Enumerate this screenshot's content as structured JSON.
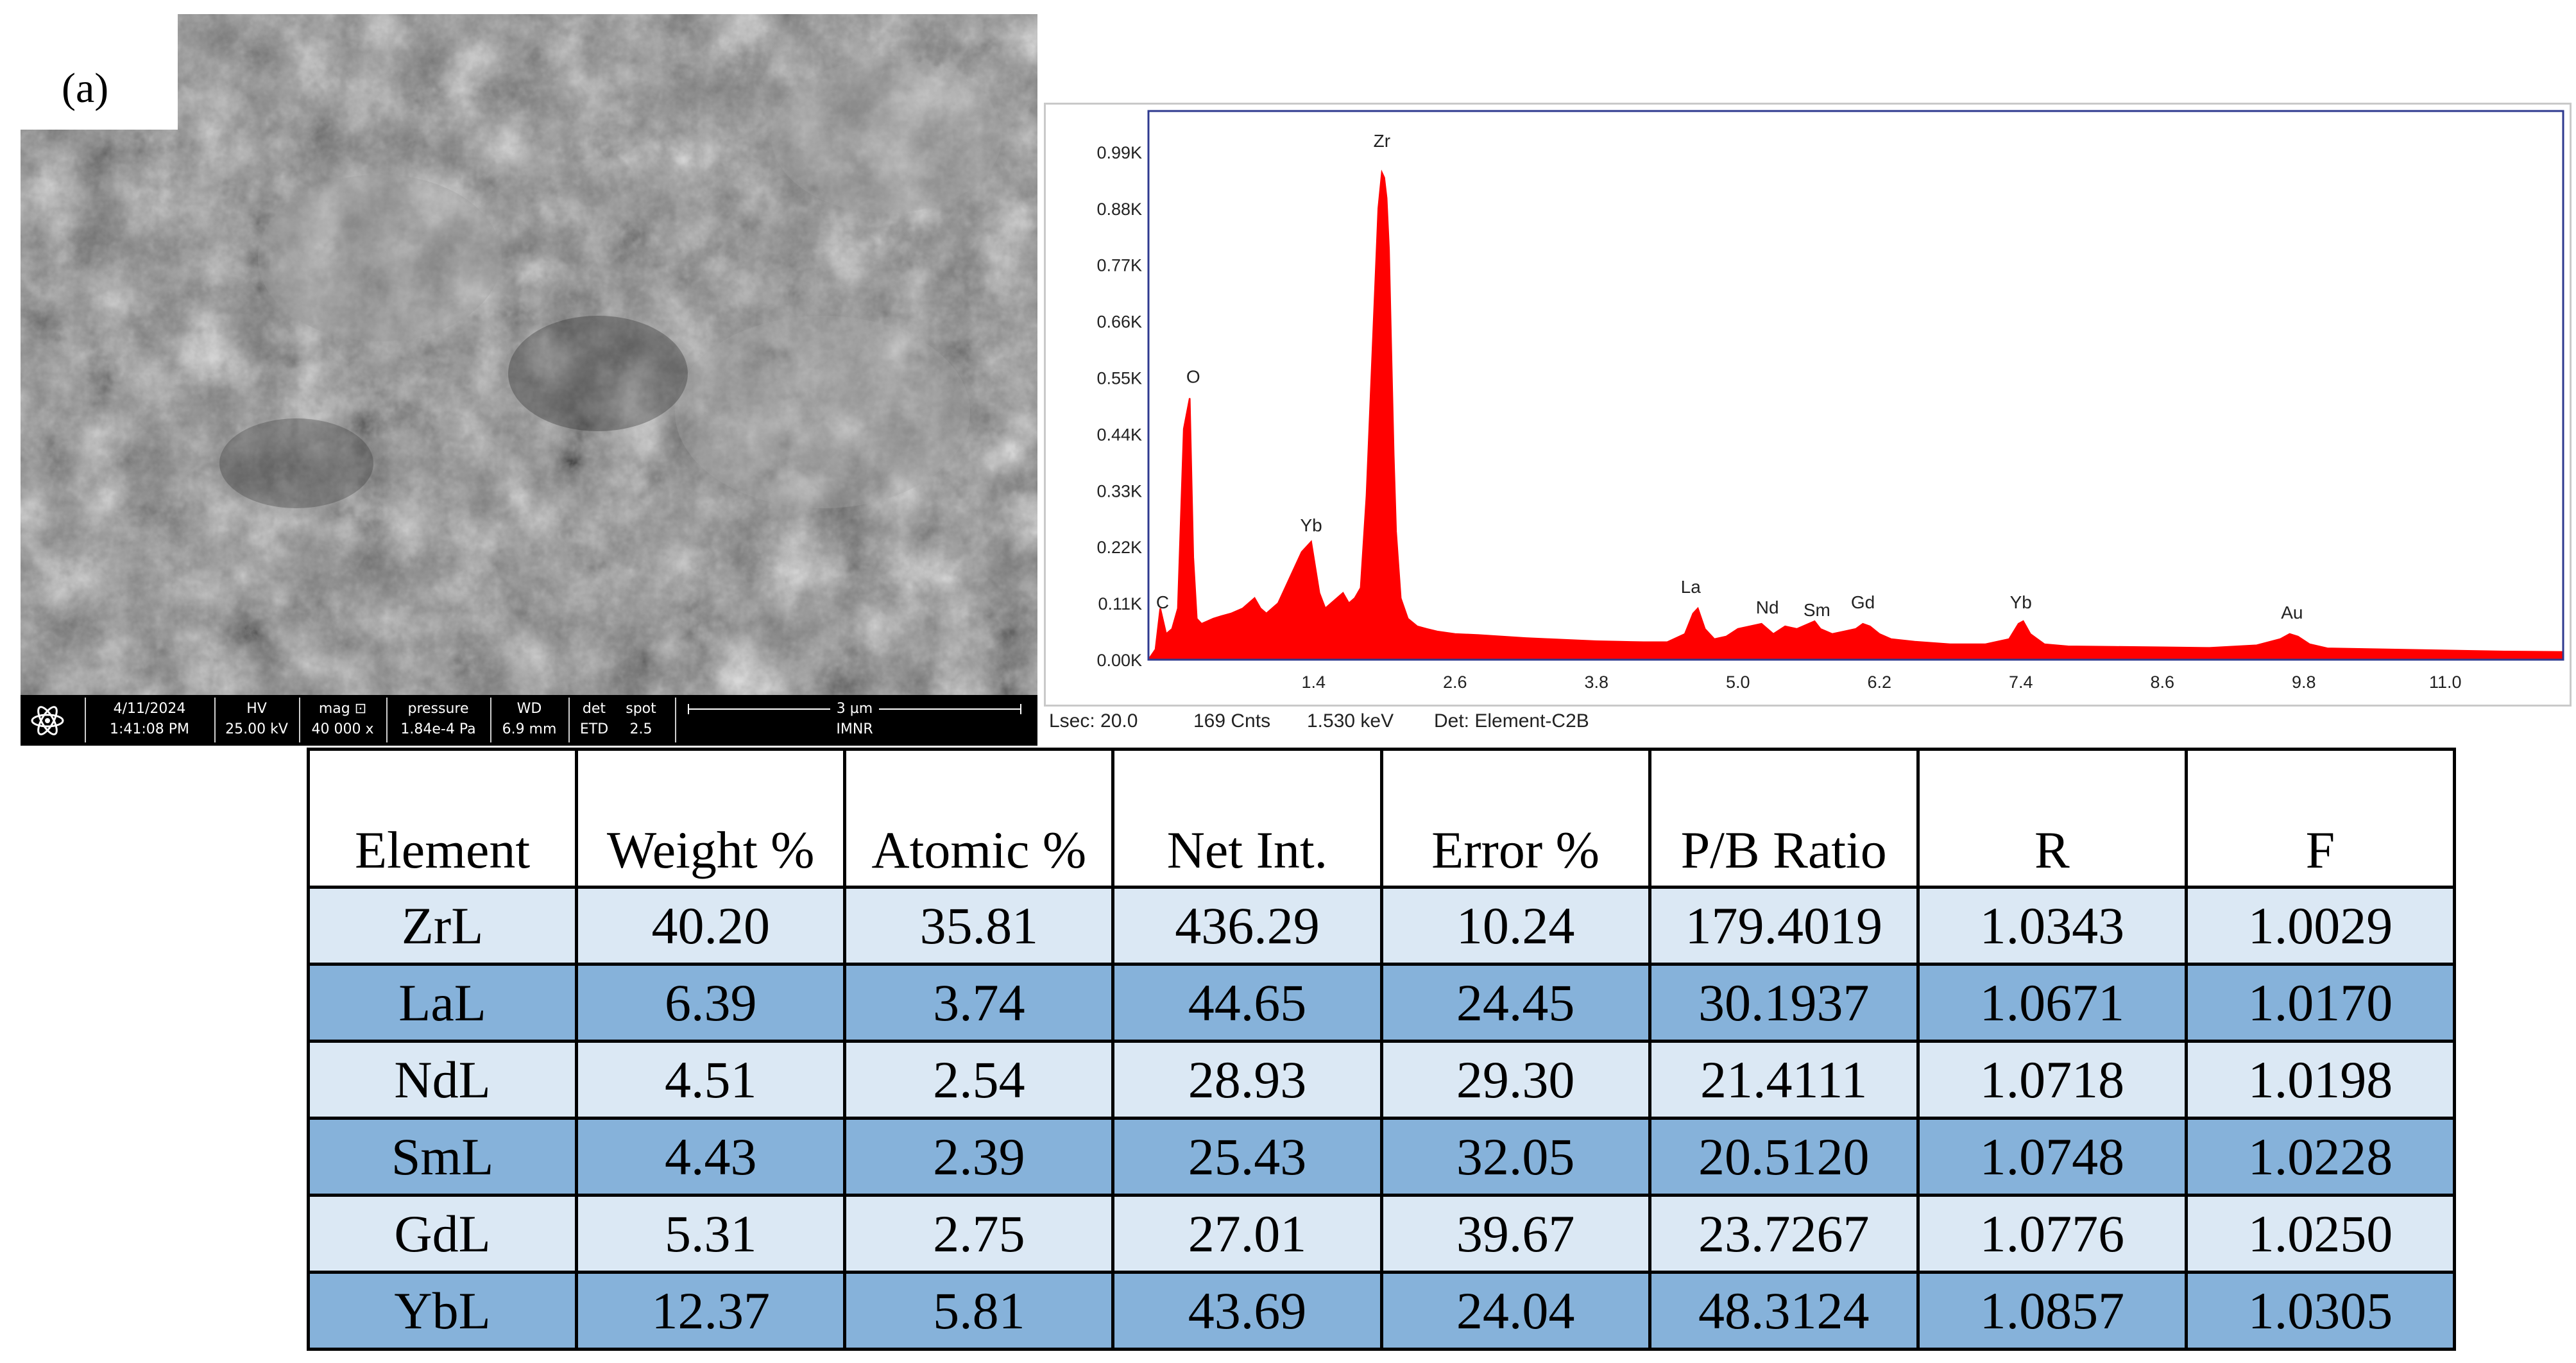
{
  "panel_label": "(a)",
  "sem_databar": {
    "date": "4/11/2024",
    "time": "1:41:08 PM",
    "hv_label": "HV",
    "hv_value": "25.00 kV",
    "mag_label": "mag ⊡",
    "mag_value": "40 000 x",
    "pressure_label": "pressure",
    "pressure_value": "1.84e-4 Pa",
    "wd_label": "WD",
    "wd_value": "6.9 mm",
    "det_label": "det",
    "det_value": "ETD",
    "spot_label": "spot",
    "spot_value": "2.5",
    "scale_label": "3 µm",
    "institution": "IMNR"
  },
  "eds_footer": {
    "lsec": "Lsec: 20.0",
    "counts": "169 Cnts",
    "kev": "1.530 keV",
    "detector": "Det: Element-C2B"
  },
  "colors": {
    "spectrum": "#ff0000",
    "plot_frame": "#2e3a8f",
    "row_light": "#dbe8f4",
    "row_dark": "#86b2da"
  },
  "chart_data": [
    {
      "type": "line",
      "title": "",
      "xlabel": "",
      "ylabel": "",
      "xlim": [
        0.0,
        12.0
      ],
      "ylim": [
        0.0,
        1.07
      ],
      "x_ticks": [
        1.4,
        2.6,
        3.8,
        5.0,
        6.2,
        7.4,
        8.6,
        9.8,
        11.0
      ],
      "x_tick_labels": [
        "1.4",
        "2.6",
        "3.8",
        "5.0",
        "6.2",
        "7.4",
        "8.6",
        "9.8",
        "11.0"
      ],
      "y_ticks": [
        0.0,
        0.11,
        0.22,
        0.33,
        0.44,
        0.55,
        0.66,
        0.77,
        0.88,
        0.99
      ],
      "y_tick_labels": [
        "0.00K",
        "0.11K",
        "0.22K",
        "0.33K",
        "0.44K",
        "0.55K",
        "0.66K",
        "0.77K",
        "0.88K",
        "0.99K"
      ],
      "series": [
        {
          "name": "EDS spectrum",
          "color": "#ff0000",
          "x": [
            0.0,
            0.06,
            0.1,
            0.15,
            0.2,
            0.25,
            0.3,
            0.35,
            0.38,
            0.41,
            0.45,
            0.5,
            0.55,
            0.62,
            0.7,
            0.8,
            0.9,
            0.95,
            1.0,
            1.05,
            1.1,
            1.2,
            1.3,
            1.38,
            1.45,
            1.5,
            1.55,
            1.6,
            1.65,
            1.7,
            1.75,
            1.8,
            1.85,
            1.9,
            1.95,
            1.98,
            2.0,
            2.02,
            2.04,
            2.06,
            2.08,
            2.1,
            2.14,
            2.2,
            2.28,
            2.36,
            2.45,
            2.6,
            2.8,
            3.0,
            3.2,
            3.4,
            3.6,
            3.8,
            4.0,
            4.2,
            4.4,
            4.55,
            4.62,
            4.66,
            4.72,
            4.8,
            4.9,
            5.0,
            5.1,
            5.2,
            5.25,
            5.3,
            5.4,
            5.5,
            5.6,
            5.65,
            5.7,
            5.8,
            5.9,
            6.0,
            6.06,
            6.12,
            6.2,
            6.3,
            6.5,
            6.8,
            7.1,
            7.3,
            7.38,
            7.42,
            7.48,
            7.6,
            7.8,
            8.2,
            8.6,
            9.0,
            9.4,
            9.6,
            9.68,
            9.75,
            9.85,
            10.0,
            10.5,
            11.0,
            11.5,
            12.0
          ],
          "y": [
            0.0,
            0.02,
            0.1,
            0.05,
            0.06,
            0.1,
            0.45,
            0.51,
            0.2,
            0.08,
            0.07,
            0.075,
            0.08,
            0.085,
            0.09,
            0.1,
            0.12,
            0.1,
            0.09,
            0.1,
            0.11,
            0.16,
            0.21,
            0.23,
            0.13,
            0.1,
            0.11,
            0.12,
            0.13,
            0.11,
            0.12,
            0.14,
            0.32,
            0.6,
            0.88,
            0.95,
            0.94,
            0.9,
            0.8,
            0.6,
            0.4,
            0.25,
            0.12,
            0.08,
            0.065,
            0.06,
            0.055,
            0.05,
            0.048,
            0.045,
            0.042,
            0.04,
            0.038,
            0.036,
            0.035,
            0.034,
            0.034,
            0.05,
            0.09,
            0.1,
            0.06,
            0.04,
            0.045,
            0.06,
            0.065,
            0.07,
            0.06,
            0.05,
            0.065,
            0.06,
            0.07,
            0.075,
            0.06,
            0.05,
            0.055,
            0.06,
            0.07,
            0.065,
            0.05,
            0.04,
            0.035,
            0.03,
            0.03,
            0.04,
            0.07,
            0.075,
            0.05,
            0.03,
            0.026,
            0.025,
            0.024,
            0.023,
            0.028,
            0.04,
            0.05,
            0.045,
            0.03,
            0.022,
            0.02,
            0.018,
            0.016,
            0.015
          ]
        }
      ],
      "annotations": [
        {
          "text": "C",
          "x": 0.12,
          "y": 0.1
        },
        {
          "text": "O",
          "x": 0.38,
          "y": 0.54
        },
        {
          "text": "Yb",
          "x": 1.38,
          "y": 0.25
        },
        {
          "text": "Zr",
          "x": 1.98,
          "y": 1.0
        },
        {
          "text": "La",
          "x": 4.6,
          "y": 0.13
        },
        {
          "text": "Nd",
          "x": 5.25,
          "y": 0.09
        },
        {
          "text": "Sm",
          "x": 5.67,
          "y": 0.085
        },
        {
          "text": "Gd",
          "x": 6.06,
          "y": 0.1
        },
        {
          "text": "Yb",
          "x": 7.4,
          "y": 0.1
        },
        {
          "text": "Au",
          "x": 9.7,
          "y": 0.08
        }
      ]
    },
    {
      "type": "table",
      "columns": [
        "Element",
        "Weight %",
        "Atomic %",
        "Net Int.",
        "Error %",
        "P/B Ratio",
        "R",
        "F"
      ],
      "rows": [
        [
          "ZrL",
          "40.20",
          "35.81",
          "436.29",
          "10.24",
          "179.4019",
          "1.0343",
          "1.0029"
        ],
        [
          "LaL",
          "6.39",
          "3.74",
          "44.65",
          "24.45",
          "30.1937",
          "1.0671",
          "1.0170"
        ],
        [
          "NdL",
          "4.51",
          "2.54",
          "28.93",
          "29.30",
          "21.4111",
          "1.0718",
          "1.0198"
        ],
        [
          "SmL",
          "4.43",
          "2.39",
          "25.43",
          "32.05",
          "20.5120",
          "1.0748",
          "1.0228"
        ],
        [
          "GdL",
          "5.31",
          "2.75",
          "27.01",
          "39.67",
          "23.7267",
          "1.0776",
          "1.0250"
        ],
        [
          "YbL",
          "12.37",
          "5.81",
          "43.69",
          "24.04",
          "48.3124",
          "1.0857",
          "1.0305"
        ]
      ]
    }
  ]
}
